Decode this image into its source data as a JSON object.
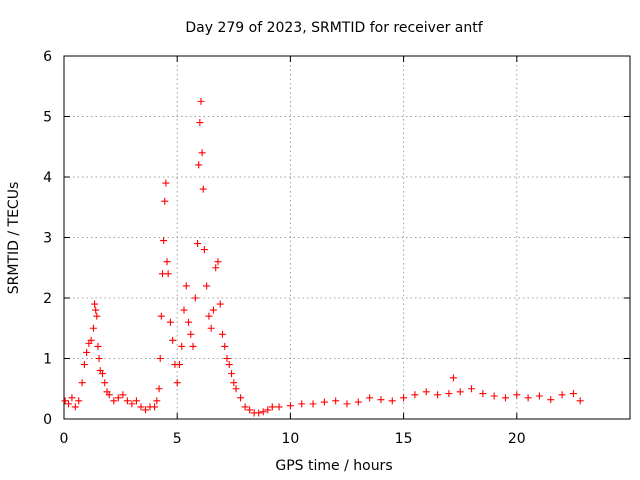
{
  "chart_data": {
    "type": "scatter",
    "title": "Day 279 of 2023, SRMTID for receiver antf",
    "xlabel": "GPS time / hours",
    "ylabel": "SRMTID / TECUs",
    "xlim": [
      0,
      25
    ],
    "ylim": [
      0,
      6
    ],
    "xticks": [
      0,
      5,
      10,
      15,
      20
    ],
    "yticks": [
      0,
      1,
      2,
      3,
      4,
      5,
      6
    ],
    "grid": true,
    "marker": "+",
    "color": "#ff0000",
    "series": [
      {
        "name": "SRMTID",
        "x": [
          0.05,
          0.2,
          0.35,
          0.5,
          0.65,
          0.8,
          0.9,
          1.0,
          1.1,
          1.2,
          1.3,
          1.35,
          1.4,
          1.45,
          1.5,
          1.55,
          1.6,
          1.7,
          1.8,
          1.9,
          2.0,
          2.2,
          2.4,
          2.6,
          2.8,
          3.0,
          3.2,
          3.4,
          3.6,
          3.8,
          4.0,
          4.1,
          4.2,
          4.25,
          4.3,
          4.35,
          4.4,
          4.45,
          4.5,
          4.55,
          4.6,
          4.7,
          4.8,
          4.9,
          5.0,
          5.1,
          5.2,
          5.3,
          5.4,
          5.5,
          5.6,
          5.7,
          5.8,
          5.9,
          5.95,
          6.0,
          6.05,
          6.1,
          6.15,
          6.2,
          6.3,
          6.4,
          6.5,
          6.6,
          6.7,
          6.8,
          6.9,
          7.0,
          7.1,
          7.2,
          7.3,
          7.4,
          7.5,
          7.6,
          7.8,
          8.0,
          8.2,
          8.4,
          8.6,
          8.8,
          9.0,
          9.2,
          9.5,
          10.0,
          10.5,
          11.0,
          11.5,
          12.0,
          12.5,
          13.0,
          13.5,
          14.0,
          14.5,
          15.0,
          15.5,
          16.0,
          16.5,
          17.0,
          17.2,
          17.5,
          18.0,
          18.5,
          19.0,
          19.5,
          20.0,
          20.5,
          21.0,
          21.5,
          22.0,
          22.5,
          22.8
        ],
        "y": [
          0.3,
          0.25,
          0.35,
          0.2,
          0.3,
          0.6,
          0.9,
          1.1,
          1.25,
          1.3,
          1.5,
          1.9,
          1.8,
          1.7,
          1.2,
          1.0,
          0.8,
          0.75,
          0.6,
          0.45,
          0.4,
          0.3,
          0.35,
          0.4,
          0.3,
          0.25,
          0.3,
          0.2,
          0.15,
          0.2,
          0.2,
          0.3,
          0.5,
          1.0,
          1.7,
          2.4,
          2.95,
          3.6,
          3.9,
          2.6,
          2.4,
          1.6,
          1.3,
          0.9,
          0.6,
          0.9,
          1.2,
          1.8,
          2.2,
          1.6,
          1.4,
          1.2,
          2.0,
          2.9,
          4.2,
          4.9,
          5.25,
          4.4,
          3.8,
          2.8,
          2.2,
          1.7,
          1.5,
          1.8,
          2.5,
          2.6,
          1.9,
          1.4,
          1.2,
          1.0,
          0.9,
          0.75,
          0.6,
          0.5,
          0.35,
          0.2,
          0.15,
          0.1,
          0.1,
          0.12,
          0.15,
          0.2,
          0.2,
          0.22,
          0.25,
          0.25,
          0.28,
          0.3,
          0.25,
          0.28,
          0.35,
          0.32,
          0.3,
          0.35,
          0.4,
          0.45,
          0.4,
          0.42,
          0.68,
          0.45,
          0.5,
          0.42,
          0.38,
          0.35,
          0.4,
          0.35,
          0.38,
          0.32,
          0.4,
          0.42,
          0.3
        ]
      }
    ]
  }
}
